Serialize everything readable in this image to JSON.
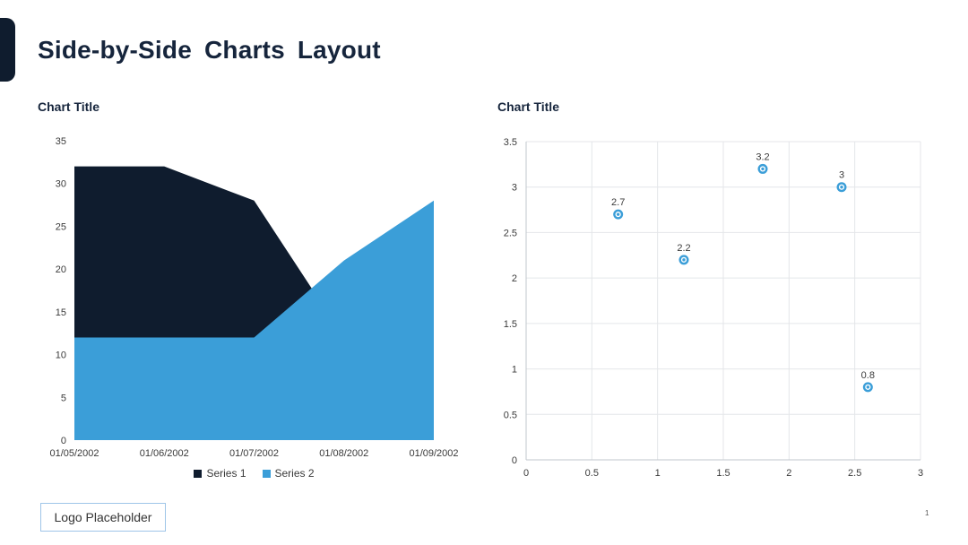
{
  "page": {
    "title": "Side-by-Side Charts Layout",
    "logo_text": "Logo Placeholder",
    "page_number": "1"
  },
  "colors": {
    "navy": "#0f1c2e",
    "blue": "#3b9ed8",
    "heading": "#16253c",
    "tick_text": "#3a3a3a",
    "grid": "#e4e6e9",
    "axis": "#c2c7cd",
    "logo_border": "#9fc5e8"
  },
  "chart_data": [
    {
      "type": "area",
      "title": "Chart Title",
      "categories": [
        "01/05/2002",
        "01/06/2002",
        "01/07/2002",
        "01/08/2002",
        "01/09/2002"
      ],
      "series": [
        {
          "name": "Series 1",
          "color_key": "navy",
          "values": [
            32,
            32,
            28,
            12,
            12
          ]
        },
        {
          "name": "Series 2",
          "color_key": "blue",
          "values": [
            12,
            12,
            12,
            21,
            28
          ]
        }
      ],
      "ylim": [
        0,
        35
      ],
      "ytick_step": 5,
      "grid": false,
      "legend_position": "bottom"
    },
    {
      "type": "scatter",
      "title": "Chart Title",
      "points": [
        {
          "x": 0.7,
          "y": 2.7,
          "label": "2.7"
        },
        {
          "x": 1.2,
          "y": 2.2,
          "label": "2.2"
        },
        {
          "x": 1.8,
          "y": 3.2,
          "label": "3.2"
        },
        {
          "x": 2.4,
          "y": 3.0,
          "label": "3"
        },
        {
          "x": 2.6,
          "y": 0.8,
          "label": "0.8"
        }
      ],
      "xlim": [
        0,
        3
      ],
      "ylim": [
        0,
        3.5
      ],
      "xtick_step": 0.5,
      "ytick_step": 0.5,
      "grid": true,
      "marker": "donut-circle"
    }
  ]
}
